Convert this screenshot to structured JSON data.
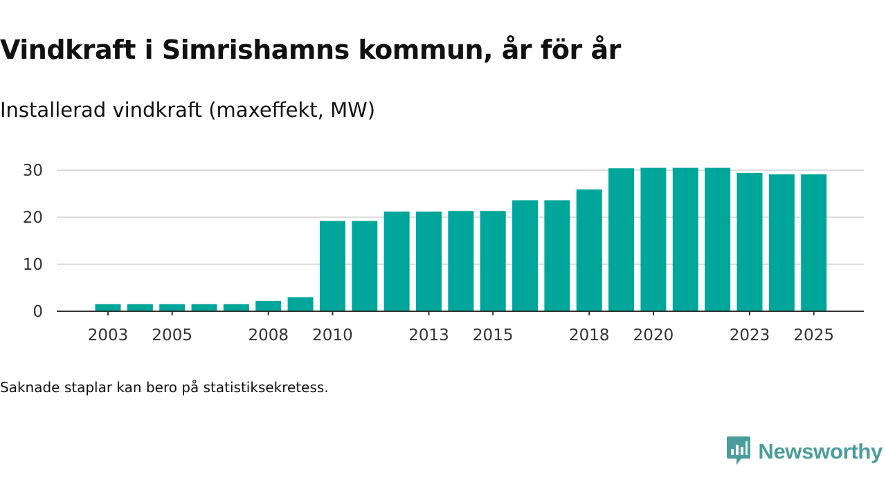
{
  "title": "Vindkraft i Simrishamns kommun, år för år",
  "subtitle": "Installerad vindkraft (maxeffekt, MW)",
  "footnote": "Saknade staplar kan bero på statistiksekretess.",
  "brand": {
    "name": "Newsworthy",
    "logo_icon": "newsworthy-logo-icon",
    "color": "#4a9d9a"
  },
  "colors": {
    "bar": "#00a699",
    "grid": "#dddddd",
    "axis": "#333333",
    "text": "#333333"
  },
  "chart_data": {
    "type": "bar",
    "title": "Vindkraft i Simrishamns kommun, år för år",
    "subtitle": "Installerad vindkraft (maxeffekt, MW)",
    "xlabel": "",
    "ylabel": "Installerad vindkraft (maxeffekt, MW)",
    "categories": [
      "2003",
      "2004",
      "2005",
      "2006",
      "2007",
      "2008",
      "2009",
      "2010",
      "2011",
      "2012",
      "2013",
      "2014",
      "2015",
      "2016",
      "2017",
      "2018",
      "2019",
      "2020",
      "2021",
      "2022",
      "2023",
      "2024",
      "2025"
    ],
    "values": [
      1.5,
      1.5,
      1.5,
      1.5,
      1.5,
      2.2,
      3.0,
      19.2,
      19.2,
      21.2,
      21.2,
      21.3,
      21.3,
      23.6,
      23.6,
      25.9,
      30.4,
      30.5,
      30.5,
      30.5,
      29.4,
      29.1,
      29.1
    ],
    "ylim": [
      0,
      32
    ],
    "yticks": [
      "0",
      "10",
      "20",
      "30"
    ],
    "xticks": [
      "2003",
      "2005",
      "2008",
      "2010",
      "2013",
      "2015",
      "2018",
      "2020",
      "2023",
      "2025"
    ],
    "grid": true,
    "legend": "none"
  }
}
